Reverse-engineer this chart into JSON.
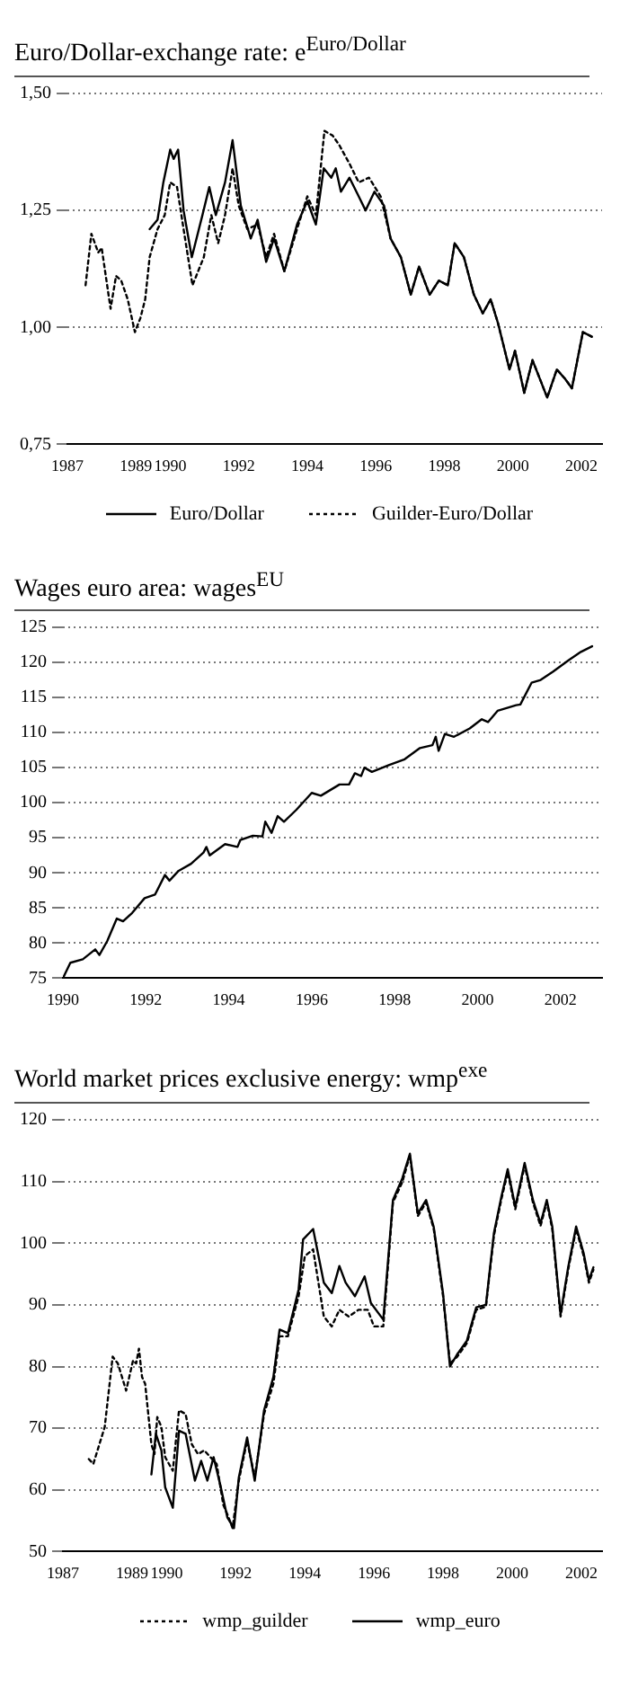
{
  "chart_data": [
    {
      "type": "line",
      "title": "Euro/Dollar-exchange rate: e$^{Euro/Dollar}$",
      "xlim": [
        1987,
        2002.6
      ],
      "xticks": [
        1987,
        1989,
        1990,
        1992,
        1994,
        1996,
        1998,
        2000,
        2002
      ],
      "ylim": [
        0.75,
        1.5
      ],
      "yticks": [
        {
          "value": 0.75,
          "label": "0,75"
        },
        {
          "value": 1.0,
          "label": "1,00"
        },
        {
          "value": 1.25,
          "label": "1,25"
        },
        {
          "value": 1.5,
          "label": "1,50"
        }
      ],
      "grid": "y",
      "legend": "bottom",
      "series": [
        {
          "name": "Euro/Dollar",
          "color": "#000000",
          "line_style": "solid",
          "x": [
            1989.4,
            1989.63,
            1989.8,
            1990.0,
            1990.1,
            1990.23,
            1990.39,
            1990.63,
            1990.94,
            1991.14,
            1991.33,
            1991.6,
            1991.82,
            1992.06,
            1992.35,
            1992.55,
            1992.8,
            1993.03,
            1993.33,
            1993.7,
            1994.0,
            1994.25,
            1994.48,
            1994.7,
            1994.83,
            1994.98,
            1995.23,
            1995.5,
            1995.7,
            1995.96,
            1996.24,
            1996.43,
            1996.73,
            1997.02,
            1997.26,
            1997.57,
            1997.84,
            1998.1,
            1998.3,
            1998.57,
            1998.86,
            1999.12,
            1999.35,
            1999.56,
            1999.9,
            2000.06,
            2000.33,
            2000.57,
            2001.0,
            2001.28,
            2001.52,
            2001.72,
            2002.04,
            2002.3
          ],
          "values": [
            1.21,
            1.23,
            1.31,
            1.38,
            1.36,
            1.38,
            1.25,
            1.15,
            1.24,
            1.3,
            1.24,
            1.31,
            1.4,
            1.26,
            1.19,
            1.23,
            1.14,
            1.19,
            1.12,
            1.22,
            1.27,
            1.22,
            1.34,
            1.32,
            1.34,
            1.29,
            1.32,
            1.28,
            1.25,
            1.29,
            1.26,
            1.19,
            1.15,
            1.07,
            1.13,
            1.07,
            1.1,
            1.09,
            1.18,
            1.15,
            1.07,
            1.03,
            1.06,
            1.01,
            0.91,
            0.95,
            0.86,
            0.93,
            0.85,
            0.91,
            0.89,
            0.87,
            0.99,
            0.98
          ]
        },
        {
          "name": "Guilder-Euro/Dollar",
          "color": "#000000",
          "line_style": "dotted",
          "x": [
            1987.53,
            1987.7,
            1987.9,
            1988.0,
            1988.26,
            1988.42,
            1988.57,
            1988.76,
            1988.97,
            1989.13,
            1989.27,
            1989.4,
            1989.63,
            1989.84,
            1990.0,
            1990.2,
            1990.39,
            1990.65,
            1990.98,
            1991.2,
            1991.4,
            1991.6,
            1991.82,
            1992.0,
            1992.25,
            1992.55,
            1992.8,
            1993.03,
            1993.33,
            1993.7,
            1994.0,
            1994.25,
            1994.5,
            1994.74,
            1994.93,
            1995.23,
            1995.5,
            1995.8,
            1996.14,
            1996.43,
            1996.73,
            1997.02,
            1997.26,
            1997.57,
            1997.84,
            1998.1,
            1998.3,
            1998.57,
            1998.86,
            1999.12,
            1999.35,
            1999.56,
            1999.9,
            2000.06,
            2000.33,
            2000.57,
            2001.0,
            2001.28,
            2001.52,
            2001.72,
            2002.04,
            2002.3
          ],
          "values": [
            1.09,
            1.2,
            1.16,
            1.17,
            1.04,
            1.11,
            1.1,
            1.06,
            0.99,
            1.02,
            1.06,
            1.15,
            1.21,
            1.24,
            1.31,
            1.3,
            1.21,
            1.09,
            1.15,
            1.24,
            1.18,
            1.24,
            1.34,
            1.26,
            1.21,
            1.22,
            1.15,
            1.2,
            1.12,
            1.21,
            1.28,
            1.24,
            1.42,
            1.41,
            1.39,
            1.35,
            1.31,
            1.32,
            1.28,
            1.19,
            1.15,
            1.07,
            1.13,
            1.07,
            1.1,
            1.09,
            1.18,
            1.15,
            1.07,
            1.03,
            1.06,
            1.01,
            0.91,
            0.95,
            0.86,
            0.93,
            0.85,
            0.91,
            0.89,
            0.87,
            0.99,
            0.98
          ]
        }
      ]
    },
    {
      "type": "line",
      "title": "Wages euro area: wages$^{EU}$",
      "xlim": [
        1990,
        2003
      ],
      "xticks": [
        1990,
        1992,
        1994,
        1996,
        1998,
        2000,
        2002
      ],
      "ylim": [
        75,
        125
      ],
      "yticks": [
        75,
        80,
        85,
        90,
        95,
        100,
        105,
        110,
        115,
        120,
        125
      ],
      "grid": "y",
      "series": [
        {
          "color": "#000000",
          "line_style": "solid",
          "x": [
            1990.0,
            1990.18,
            1990.48,
            1990.78,
            1990.88,
            1991.07,
            1991.3,
            1991.45,
            1991.67,
            1991.97,
            1992.22,
            1992.46,
            1992.57,
            1992.79,
            1993.09,
            1993.39,
            1993.46,
            1993.54,
            1993.91,
            1994.21,
            1994.28,
            1994.58,
            1994.81,
            1994.88,
            1995.03,
            1995.18,
            1995.33,
            1995.63,
            1996.0,
            1996.22,
            1996.67,
            1996.9,
            1997.04,
            1997.19,
            1997.27,
            1997.45,
            1997.87,
            1998.24,
            1998.61,
            1998.91,
            1998.99,
            1999.06,
            1999.21,
            1999.43,
            1999.81,
            2000.1,
            2000.25,
            2000.48,
            2000.93,
            2001.03,
            2001.3,
            2001.52,
            2001.82,
            2002.19,
            2002.49,
            2002.76
          ],
          "values": [
            75.0,
            77.2,
            77.7,
            79.1,
            78.3,
            80.3,
            83.5,
            83.1,
            84.3,
            86.4,
            86.9,
            89.7,
            88.9,
            90.3,
            91.3,
            92.9,
            93.7,
            92.5,
            94.1,
            93.7,
            94.7,
            95.3,
            95.2,
            97.3,
            95.7,
            98.1,
            97.3,
            99.0,
            101.4,
            101.0,
            102.6,
            102.6,
            104.2,
            103.8,
            105.0,
            104.4,
            105.4,
            106.2,
            107.8,
            108.2,
            109.4,
            107.4,
            109.8,
            109.4,
            110.6,
            111.9,
            111.5,
            113.1,
            113.9,
            114.0,
            117.1,
            117.5,
            118.7,
            120.3,
            121.5,
            122.3
          ]
        }
      ]
    },
    {
      "type": "line",
      "title": "World market prices exclusive energy: wmp$^{exe}$",
      "xlim": [
        1987,
        2002.6
      ],
      "xticks": [
        1987,
        1989,
        1990,
        1992,
        1994,
        1996,
        1998,
        2000,
        2002
      ],
      "ylim": [
        50,
        120
      ],
      "yticks": [
        50,
        60,
        70,
        80,
        90,
        100,
        110,
        120
      ],
      "grid": "y",
      "legend": "bottom",
      "series": [
        {
          "name": "wmp_guilder",
          "color": "#000000",
          "line_style": "dotted",
          "x": [
            1987.75,
            1987.88,
            1988.21,
            1988.44,
            1988.59,
            1988.83,
            1989.03,
            1989.12,
            1989.2,
            1989.29,
            1989.38,
            1989.56,
            1989.65,
            1989.73,
            1989.85,
            1989.96,
            1990.18,
            1990.36,
            1990.55,
            1990.73,
            1990.91,
            1991.09,
            1991.27,
            1991.45,
            1991.64,
            1991.76,
            1991.91,
            1992.09,
            1992.33,
            1992.55,
            1992.82,
            1993.09,
            1993.27,
            1993.51,
            1993.82,
            1994.0,
            1994.24,
            1994.55,
            1994.78,
            1995.0,
            1995.27,
            1995.55,
            1995.82,
            1996.0,
            1996.27,
            1996.55,
            1996.82,
            1997.04,
            1997.27,
            1997.51,
            1997.73,
            1998.0,
            1998.2,
            1998.41,
            1998.69,
            1998.96,
            1999.24,
            1999.47,
            1999.69,
            1999.87,
            2000.09,
            2000.36,
            2000.6,
            2000.82,
            2001.0,
            2001.16,
            2001.4,
            2001.62,
            2001.85,
            2002.07,
            2002.22,
            2002.35
          ],
          "values": [
            65,
            64.2,
            70.2,
            81.6,
            80.5,
            76.1,
            81,
            80.5,
            82.9,
            78.3,
            77.2,
            67.4,
            65.8,
            71.8,
            70.2,
            65.3,
            63.1,
            72.9,
            72.3,
            67.4,
            65.8,
            66.4,
            65.3,
            64.2,
            57.6,
            56,
            53.8,
            61.5,
            68,
            62,
            72.3,
            77.2,
            84.9,
            84.9,
            91.4,
            97.9,
            99,
            88.1,
            86.5,
            89.2,
            88.1,
            89.2,
            89.2,
            86.5,
            86.5,
            106.6,
            109.9,
            114.2,
            104.4,
            106.6,
            102.3,
            91.4,
            80.5,
            81.6,
            83.8,
            89.2,
            89.7,
            101.2,
            107.2,
            111.5,
            105.5,
            112.6,
            106.6,
            102.8,
            106.6,
            102.3,
            88.1,
            95.7,
            102.3,
            97.9,
            93.6,
            95.7
          ]
        },
        {
          "name": "wmp_euro",
          "color": "#000000",
          "line_style": "solid",
          "x": [
            1989.56,
            1989.69,
            1989.85,
            1989.96,
            1990.18,
            1990.36,
            1990.55,
            1990.82,
            1991.0,
            1991.18,
            1991.36,
            1991.55,
            1991.76,
            1991.95,
            1992.09,
            1992.33,
            1992.55,
            1992.82,
            1993.09,
            1993.27,
            1993.51,
            1993.82,
            1993.95,
            1994.24,
            1994.55,
            1994.78,
            1995.0,
            1995.18,
            1995.45,
            1995.73,
            1995.91,
            1996.27,
            1996.55,
            1996.82,
            1997.04,
            1997.27,
            1997.51,
            1997.73,
            1998.0,
            1998.2,
            1998.41,
            1998.69,
            1998.96,
            1999.24,
            1999.47,
            1999.69,
            1999.87,
            2000.09,
            2000.36,
            2000.6,
            2000.82,
            2001.0,
            2001.16,
            2001.4,
            2001.62,
            2001.85,
            2002.07,
            2002.22,
            2002.35
          ],
          "values": [
            62.5,
            69.1,
            66.4,
            60.4,
            57.1,
            69.6,
            69.1,
            61.5,
            64.7,
            61.5,
            65.3,
            60.9,
            55.5,
            53.8,
            62,
            68.5,
            61.5,
            72.9,
            78.3,
            86,
            85.4,
            92.5,
            100.6,
            102.3,
            93.6,
            91.9,
            96.3,
            93.6,
            91.4,
            94.6,
            90.3,
            87.6,
            107,
            110.5,
            114.5,
            104.8,
            107,
            102.6,
            91.8,
            80,
            82,
            84.2,
            89.6,
            90,
            101.6,
            107.6,
            112,
            105.9,
            113,
            107,
            103.2,
            107,
            102.7,
            88.5,
            96.1,
            102.7,
            98.3,
            94,
            96.1
          ]
        }
      ]
    }
  ]
}
